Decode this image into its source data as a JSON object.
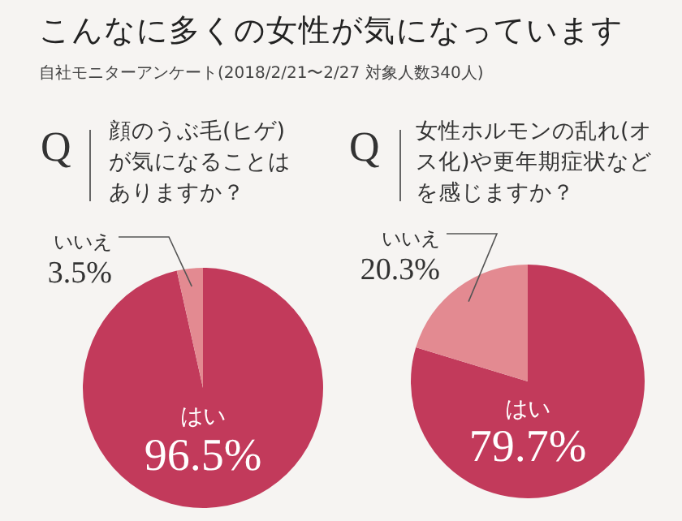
{
  "chart_data": [
    {
      "type": "other",
      "title": "こんなに多くの女性が気になっています",
      "subtitle": "自社モニターアンケート(2018/2/21〜2/27 対象人数340人)"
    },
    {
      "type": "pie",
      "title": "顔のうぶ毛(ヒゲ)が気になることはありますか？",
      "annotations": [
        "Q"
      ],
      "categories": [
        "はい",
        "いいえ"
      ],
      "values": [
        96.5,
        3.5
      ],
      "colors": [
        "#c23a5b",
        "#e38a91"
      ],
      "value_labels": [
        "96.5%",
        "3.5%"
      ]
    },
    {
      "type": "pie",
      "title": "女性ホルモンの乱れ(オス化)や更年期症状などを感じますか？",
      "annotations": [
        "Q"
      ],
      "categories": [
        "はい",
        "いいえ"
      ],
      "values": [
        79.7,
        20.3
      ],
      "colors": [
        "#c23a5b",
        "#e38a91"
      ],
      "value_labels": [
        "79.7%",
        "20.3%"
      ]
    }
  ]
}
